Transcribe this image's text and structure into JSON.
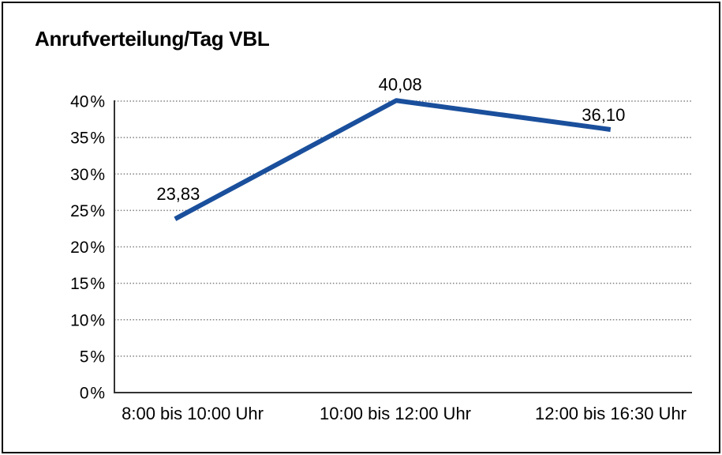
{
  "chart_data": {
    "type": "line",
    "title": "Anrufverteilung/Tag VBL",
    "categories": [
      "8:00 bis 10:00 Uhr",
      "10:00 bis 12:00 Uhr",
      "12:00 bis 16:30 Uhr"
    ],
    "values": [
      23.83,
      40.08,
      36.1
    ],
    "point_labels": [
      "23,83",
      "40,08",
      "36,10"
    ],
    "yticks": [
      0,
      5,
      10,
      15,
      20,
      25,
      30,
      35,
      40
    ],
    "ytick_labels": [
      "0 %",
      "5 %",
      "10 %",
      "15 %",
      "20 %",
      "25 %",
      "30 %",
      "35 %",
      "40 %"
    ],
    "ylim": [
      0,
      40
    ],
    "xlabel": "",
    "ylabel": "",
    "grid": "horizontal-dotted",
    "legend": "none",
    "colors": {
      "line": "#1a4f9c",
      "grid": "#808080",
      "axis": "#333333",
      "text": "#000000",
      "border": "#000000",
      "background": "#ffffff"
    }
  }
}
